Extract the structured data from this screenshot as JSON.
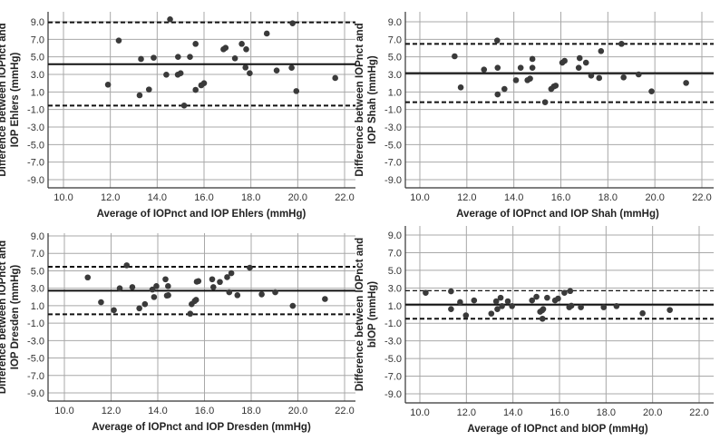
{
  "chart_data": [
    {
      "type": "scatter",
      "xlabel": "Average of IOPnct and IOP Ehlers (mmHg)",
      "ylabel": [
        "Difference between IOPnct and",
        "IOP Ehlers (mmHg)"
      ],
      "xlim": [
        10,
        22
      ],
      "ylim": [
        -9,
        9
      ],
      "xticks": [
        "10.0",
        "12.0",
        "14.0",
        "16.0",
        "18.0",
        "20.0",
        "22.0"
      ],
      "yticks": [
        "9.0",
        "7.0",
        "5.0",
        "3.0",
        "1.0",
        "-1.0",
        "-3.0",
        "-5.0",
        "-7.0",
        "-9.0"
      ],
      "grid": true,
      "mean_line": 4.17,
      "upper_loa": 8.93,
      "lower_loa": -0.55,
      "points": [
        [
          11.9,
          1.83
        ],
        [
          12.36,
          6.86
        ],
        [
          13.25,
          0.62
        ],
        [
          13.31,
          4.76
        ],
        [
          13.65,
          1.28
        ],
        [
          13.85,
          4.9
        ],
        [
          14.39,
          2.97
        ],
        [
          14.55,
          9.28
        ],
        [
          14.88,
          2.97
        ],
        [
          14.89,
          5.0
        ],
        [
          15.0,
          3.14
        ],
        [
          15.15,
          -0.55
        ],
        [
          15.4,
          5.0
        ],
        [
          15.64,
          6.48
        ],
        [
          15.64,
          1.24
        ],
        [
          15.88,
          1.76
        ],
        [
          16.0,
          2.0
        ],
        [
          16.83,
          5.86
        ],
        [
          16.92,
          6.03
        ],
        [
          17.32,
          4.83
        ],
        [
          17.61,
          6.48
        ],
        [
          17.77,
          3.79
        ],
        [
          17.8,
          5.86
        ],
        [
          17.95,
          3.14
        ],
        [
          18.68,
          7.66
        ],
        [
          19.1,
          3.45
        ],
        [
          19.74,
          3.76
        ],
        [
          19.78,
          8.83
        ],
        [
          19.94,
          1.1
        ],
        [
          21.6,
          2.59
        ]
      ]
    },
    {
      "type": "scatter",
      "xlabel": "Average of IOPnct and IOP Shah (mmHg)",
      "ylabel": [
        "Difference between IOPnct and",
        "IOP Shah (mmHg)"
      ],
      "xlim": [
        10,
        22
      ],
      "ylim": [
        -9,
        9
      ],
      "xticks": [
        "10.0",
        "12.0",
        "14.0",
        "16.0",
        "18.0",
        "20.0",
        "22.0"
      ],
      "yticks": [
        "9.0",
        "7.0",
        "5.0",
        "3.0",
        "1.0",
        "-1.0",
        "-3.0",
        "-5.0",
        "-7.0",
        "-9.0"
      ],
      "grid": true,
      "mean_line": 3.14,
      "upper_loa": 6.48,
      "lower_loa": -0.17,
      "points": [
        [
          11.48,
          5.07
        ],
        [
          11.74,
          1.52
        ],
        [
          12.73,
          3.55
        ],
        [
          13.29,
          6.86
        ],
        [
          13.31,
          3.76
        ],
        [
          13.31,
          0.72
        ],
        [
          13.6,
          1.34
        ],
        [
          14.09,
          2.34
        ],
        [
          14.29,
          3.76
        ],
        [
          14.58,
          2.34
        ],
        [
          14.69,
          2.52
        ],
        [
          14.79,
          3.76
        ],
        [
          14.79,
          4.76
        ],
        [
          15.33,
          -0.17
        ],
        [
          15.59,
          1.34
        ],
        [
          15.7,
          1.62
        ],
        [
          15.78,
          1.72
        ],
        [
          16.06,
          4.34
        ],
        [
          16.16,
          4.55
        ],
        [
          16.76,
          3.76
        ],
        [
          16.8,
          4.86
        ],
        [
          17.07,
          4.34
        ],
        [
          17.29,
          2.86
        ],
        [
          17.63,
          2.59
        ],
        [
          17.71,
          5.66
        ],
        [
          18.58,
          6.48
        ],
        [
          18.67,
          2.66
        ],
        [
          19.31,
          3.0
        ],
        [
          19.86,
          1.07
        ],
        [
          21.33,
          2.03
        ]
      ]
    },
    {
      "type": "scatter",
      "xlabel": "Average of IOPnct and IOP Dresden (mmHg)",
      "ylabel": [
        "Difference between IOPnct and",
        "IOP Dresden (mmHg)"
      ],
      "xlim": [
        10,
        22
      ],
      "ylim": [
        -9,
        9
      ],
      "xticks": [
        "10.0",
        "12.0",
        "14.0",
        "16.0",
        "18.0",
        "20.0",
        "22.0"
      ],
      "yticks": [
        "9.0",
        "7.0",
        "5.0",
        "3.0",
        "1.0",
        "-1.0",
        "-3.0",
        "-5.0",
        "-7.0",
        "-9.0"
      ],
      "grid": true,
      "mean_line": 2.72,
      "upper_loa": 5.46,
      "lower_loa": 0.01,
      "points": [
        [
          11.0,
          4.24
        ],
        [
          11.57,
          1.4
        ],
        [
          12.12,
          0.49
        ],
        [
          12.37,
          3.0
        ],
        [
          12.67,
          5.63
        ],
        [
          12.91,
          3.13
        ],
        [
          13.21,
          0.7
        ],
        [
          13.45,
          1.18
        ],
        [
          13.77,
          2.85
        ],
        [
          13.84,
          1.99
        ],
        [
          13.94,
          3.24
        ],
        [
          14.33,
          4.03
        ],
        [
          14.39,
          2.16
        ],
        [
          14.44,
          3.24
        ],
        [
          14.45,
          2.2
        ],
        [
          15.39,
          0.08
        ],
        [
          15.45,
          1.18
        ],
        [
          15.58,
          1.53
        ],
        [
          15.64,
          1.67
        ],
        [
          15.67,
          3.75
        ],
        [
          15.74,
          3.82
        ],
        [
          16.33,
          4.03
        ],
        [
          16.38,
          3.13
        ],
        [
          16.66,
          3.72
        ],
        [
          16.97,
          4.27
        ],
        [
          17.15,
          4.73
        ],
        [
          17.06,
          2.54
        ],
        [
          17.41,
          2.2
        ],
        [
          17.94,
          5.35
        ],
        [
          18.45,
          2.3
        ],
        [
          19.03,
          2.54
        ],
        [
          19.78,
          0.98
        ],
        [
          21.16,
          1.77
        ]
      ]
    },
    {
      "type": "scatter",
      "xlabel": "Average of IOPnct and bIOP (mmHg)",
      "ylabel": [
        "Difference between IOPnct and",
        "bIOP (mmHg)"
      ],
      "xlim": [
        10,
        22
      ],
      "ylim": [
        -9,
        9
      ],
      "xticks": [
        "10.0",
        "12.0",
        "14.0",
        "16.0",
        "18.0",
        "20.0",
        "22.0"
      ],
      "yticks": [
        "9.0",
        "7.0",
        "5.0",
        "3.0",
        "1.0",
        "-1.0",
        "-3.0",
        "-5.0",
        "-7.0",
        "-9.0"
      ],
      "grid": true,
      "mean_line": 1.12,
      "upper_loa": 2.69,
      "lower_loa": -0.49,
      "points": [
        [
          10.25,
          2.45
        ],
        [
          11.34,
          2.62
        ],
        [
          11.34,
          0.6
        ],
        [
          11.73,
          1.39
        ],
        [
          11.98,
          -0.11
        ],
        [
          12.33,
          1.59
        ],
        [
          13.07,
          0.09
        ],
        [
          13.28,
          1.49
        ],
        [
          13.33,
          0.6
        ],
        [
          13.47,
          1.89
        ],
        [
          13.53,
          0.94
        ],
        [
          13.78,
          1.49
        ],
        [
          13.96,
          0.94
        ],
        [
          14.82,
          1.59
        ],
        [
          15.01,
          2.0
        ],
        [
          15.17,
          0.3
        ],
        [
          15.26,
          0.47
        ],
        [
          15.3,
          0.6
        ],
        [
          15.27,
          -0.49
        ],
        [
          15.47,
          1.89
        ],
        [
          15.81,
          1.59
        ],
        [
          15.94,
          1.8
        ],
        [
          16.21,
          2.45
        ],
        [
          16.42,
          0.81
        ],
        [
          16.51,
          0.98
        ],
        [
          16.46,
          2.65
        ],
        [
          16.92,
          0.81
        ],
        [
          17.9,
          0.81
        ],
        [
          18.45,
          0.94
        ],
        [
          19.57,
          0.13
        ],
        [
          20.74,
          0.5
        ]
      ]
    }
  ]
}
